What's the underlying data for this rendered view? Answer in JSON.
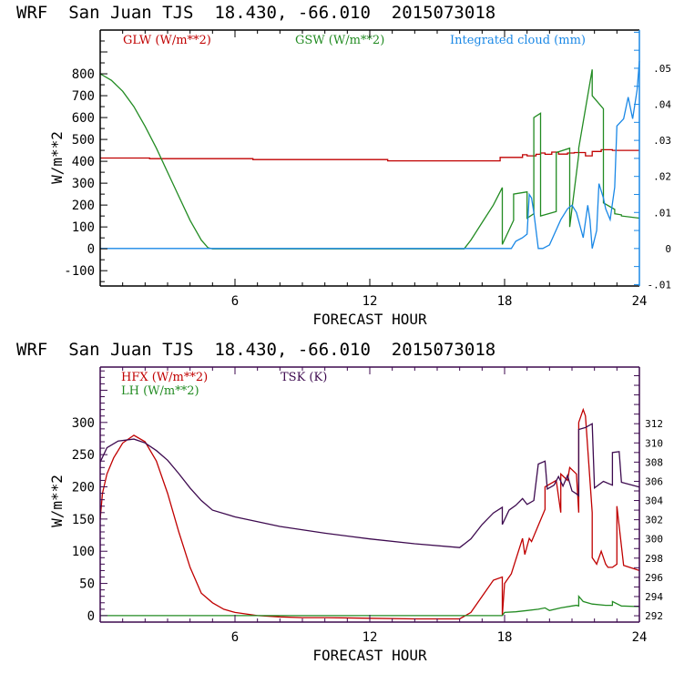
{
  "chart_data": [
    {
      "type": "line",
      "title": "WRF  San Juan TJS  18.430, -66.010  2015073018",
      "xlabel": "FORECAST HOUR",
      "ylabel": "W/m**2",
      "xlim": [
        0,
        24
      ],
      "ylim": [
        -170,
        1000
      ],
      "x_ticks": [
        6,
        12,
        18,
        24
      ],
      "y_ticks": [
        -100,
        0,
        100,
        200,
        300,
        400,
        500,
        600,
        700,
        800
      ],
      "y_tick_labels": [
        "-100",
        "0",
        "100",
        "200",
        "300",
        "400",
        "500",
        "600",
        "700",
        "800"
      ],
      "y2lim": [
        -0.0104,
        0.0606
      ],
      "y2_ticks": [
        -0.01,
        0,
        0.01,
        0.02,
        0.03,
        0.04,
        0.05
      ],
      "y2_tick_labels": [
        "-.01",
        "0",
        ".01",
        ".02",
        ".03",
        ".04",
        ".05"
      ],
      "axis_color": "#000000",
      "right_axis_color": "#1a88e6",
      "grid": false,
      "legend_position": "top",
      "series": [
        {
          "name": "GLW (W/m**2)",
          "color": "#c00000",
          "axis": "left",
          "x": [
            0,
            2.2,
            2.2,
            6.8,
            6.8,
            12.8,
            12.8,
            17.8,
            17.8,
            18.8,
            18.8,
            19.0,
            19.0,
            19.4,
            19.4,
            19.6,
            19.6,
            19.8,
            19.8,
            20.1,
            20.1,
            20.4,
            20.4,
            20.8,
            20.8,
            21.1,
            21.1,
            21.6,
            21.6,
            21.9,
            21.9,
            22.3,
            22.3,
            22.8,
            22.8,
            24
          ],
          "values": [
            415,
            415,
            412,
            412,
            408,
            408,
            402,
            402,
            418,
            418,
            430,
            430,
            425,
            425,
            432,
            432,
            438,
            438,
            432,
            432,
            442,
            442,
            433,
            433,
            438,
            438,
            440,
            440,
            425,
            425,
            445,
            445,
            453,
            453,
            450,
            450
          ]
        },
        {
          "name": "GSW (W/m**2)",
          "color": "#228b22",
          "axis": "left",
          "x": [
            0,
            0.5,
            1.0,
            1.5,
            2.0,
            2.5,
            3.0,
            3.5,
            4.0,
            4.5,
            4.8,
            5.0,
            16.2,
            16.5,
            17.0,
            17.5,
            17.9,
            17.9,
            18.4,
            18.4,
            19.0,
            19.0,
            19.3,
            19.3,
            19.6,
            19.6,
            20.3,
            20.3,
            20.9,
            20.9,
            21.3,
            21.3,
            21.9,
            21.9,
            22.4,
            22.4,
            22.9,
            22.9,
            23.2,
            23.2,
            24
          ],
          "values": [
            800,
            770,
            720,
            650,
            560,
            460,
            350,
            240,
            130,
            40,
            5,
            0,
            0,
            40,
            120,
            200,
            280,
            20,
            130,
            250,
            260,
            140,
            160,
            600,
            620,
            150,
            170,
            440,
            460,
            100,
            430,
            460,
            820,
            700,
            640,
            210,
            180,
            160,
            155,
            150,
            140
          ]
        },
        {
          "name": "Integrated cloud (mm)",
          "color": "#1a88e6",
          "axis": "right",
          "x": [
            0,
            18.3,
            18.5,
            18.8,
            19.0,
            19.1,
            19.2,
            19.3,
            19.5,
            19.7,
            20.0,
            20.5,
            20.8,
            21.0,
            21.2,
            21.5,
            21.7,
            21.8,
            21.9,
            22.1,
            22.2,
            22.4,
            22.5,
            22.7,
            22.9,
            23.0,
            23.3,
            23.5,
            23.7,
            23.9,
            24
          ],
          "values": [
            0,
            0,
            0.002,
            0.003,
            0.004,
            0.015,
            0.014,
            0.01,
            0.0,
            0.0,
            0.001,
            0.008,
            0.011,
            0.012,
            0.01,
            0.003,
            0.012,
            0.008,
            0.0,
            0.005,
            0.018,
            0.014,
            0.011,
            0.008,
            0.017,
            0.034,
            0.036,
            0.042,
            0.036,
            0.044,
            0.052
          ]
        }
      ]
    },
    {
      "type": "line",
      "title": "WRF  San Juan TJS  18.430, -66.010  2015073018",
      "xlabel": "FORECAST HOUR",
      "ylabel": "W/m**2",
      "xlim": [
        0,
        24
      ],
      "ylim": [
        -10,
        386
      ],
      "x_ticks": [
        6,
        12,
        18,
        24
      ],
      "y_ticks": [
        0,
        50,
        100,
        150,
        200,
        250,
        300
      ],
      "y_tick_labels": [
        "0",
        "50",
        "100",
        "150",
        "200",
        "250",
        "300"
      ],
      "y2lim": [
        291.34,
        317.9
      ],
      "y2_ticks": [
        292,
        294,
        296,
        298,
        300,
        302,
        304,
        306,
        308,
        310,
        312
      ],
      "y2_tick_labels": [
        "292",
        "294",
        "296",
        "298",
        "300",
        "302",
        "304",
        "306",
        "308",
        "310",
        "312"
      ],
      "axis_color": "#3d0a4f",
      "right_axis_color": "#3d0a4f",
      "grid": false,
      "legend_position": "top-left",
      "series": [
        {
          "name": "HFX (W/m**2)",
          "color": "#c00000",
          "axis": "left",
          "x": [
            0,
            0.1,
            0.3,
            0.6,
            1.0,
            1.5,
            2.0,
            2.5,
            3.0,
            3.5,
            4.0,
            4.5,
            5.0,
            5.5,
            6.0,
            7.0,
            8.0,
            9.0,
            10.0,
            12.0,
            14.0,
            16.0,
            16.5,
            17.0,
            17.5,
            17.9,
            17.9,
            18.0,
            18.3,
            18.8,
            18.9,
            19.1,
            19.2,
            19.5,
            19.8,
            19.8,
            20.3,
            20.5,
            20.5,
            20.8,
            20.9,
            21.2,
            21.3,
            21.3,
            21.5,
            21.6,
            21.9,
            21.9,
            22.1,
            22.3,
            22.5,
            22.6,
            22.8,
            23.0,
            23.0,
            23.3,
            24
          ],
          "values": [
            150,
            190,
            220,
            245,
            268,
            280,
            270,
            240,
            190,
            130,
            75,
            35,
            20,
            10,
            5,
            0,
            -2,
            -3,
            -3,
            -4,
            -5,
            -5,
            5,
            30,
            55,
            60,
            0,
            50,
            65,
            120,
            95,
            120,
            115,
            140,
            165,
            200,
            210,
            160,
            220,
            210,
            230,
            220,
            160,
            300,
            320,
            310,
            160,
            90,
            80,
            100,
            80,
            75,
            75,
            80,
            170,
            78,
            70
          ]
        },
        {
          "name": "LH (W/m**2)",
          "color": "#228b22",
          "axis": "left",
          "x": [
            0,
            17.9,
            18.0,
            18.5,
            19.0,
            19.5,
            19.8,
            20.0,
            20.5,
            21.0,
            21.2,
            21.3,
            21.3,
            21.5,
            21.9,
            22.5,
            22.8,
            22.8,
            23.2,
            24
          ],
          "values": [
            0,
            0,
            5,
            6,
            8,
            10,
            12,
            8,
            12,
            15,
            16,
            15,
            30,
            22,
            18,
            16,
            16,
            22,
            15,
            14
          ]
        },
        {
          "name": "TSK (K)",
          "color": "#3d0a4f",
          "axis": "right",
          "x": [
            0,
            0.3,
            0.8,
            1.5,
            2.0,
            2.5,
            3.0,
            3.5,
            4.0,
            4.5,
            5.0,
            6.0,
            7.0,
            8.0,
            10.0,
            12.0,
            14.0,
            16.0,
            16.5,
            17.0,
            17.5,
            17.9,
            17.9,
            18.2,
            18.5,
            18.8,
            19.0,
            19.3,
            19.5,
            19.8,
            19.9,
            20.2,
            20.4,
            20.6,
            20.8,
            21.0,
            21.2,
            21.3,
            21.3,
            21.6,
            21.9,
            22.0,
            22.4,
            22.8,
            22.8,
            23.1,
            23.2,
            24
          ],
          "values": [
            308,
            309.5,
            310.2,
            310.4,
            310.0,
            309.2,
            308.2,
            306.8,
            305.3,
            304.0,
            303.0,
            302.3,
            301.8,
            301.3,
            300.6,
            300.0,
            299.5,
            299.1,
            300.0,
            301.5,
            302.7,
            303.3,
            301.5,
            303.0,
            303.5,
            304.2,
            303.6,
            304.0,
            307.8,
            308.1,
            305.2,
            305.6,
            306.5,
            305.5,
            306.6,
            305.0,
            304.7,
            304.5,
            311.4,
            311.6,
            312.0,
            305.3,
            306.0,
            305.6,
            309.0,
            309.1,
            305.9,
            305.4
          ]
        }
      ]
    }
  ]
}
